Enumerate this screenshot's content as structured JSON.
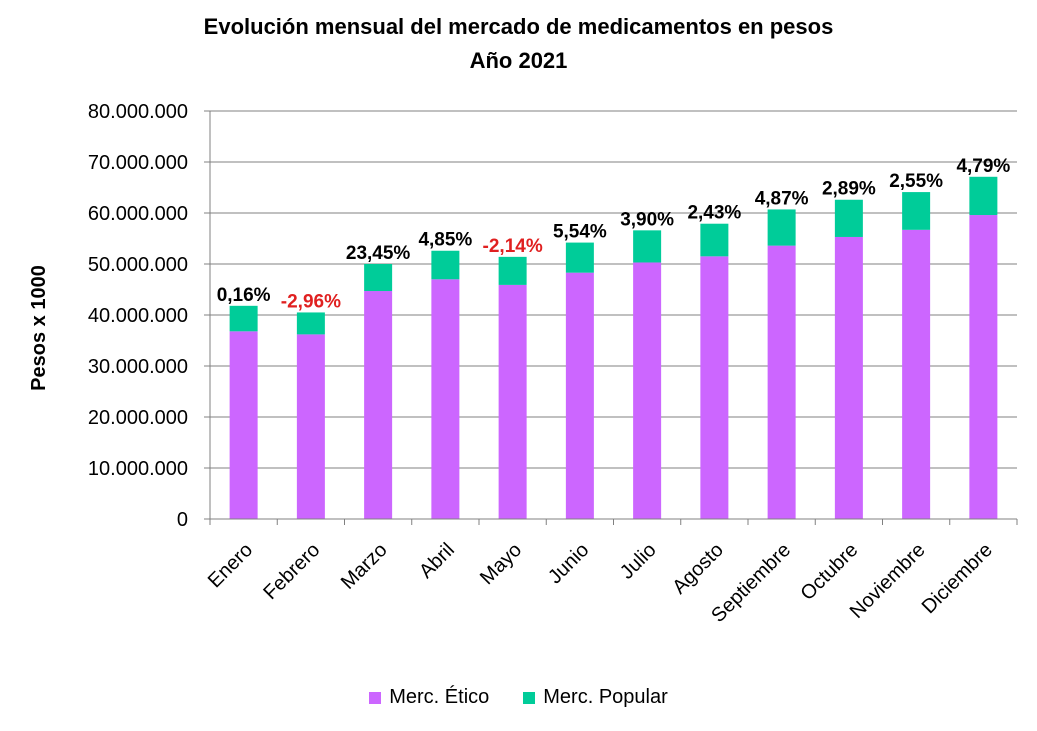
{
  "chart_data": {
    "type": "bar",
    "stacked": true,
    "title": "Evolución mensual del mercado de medicamentos en pesos",
    "subtitle": "Año 2021",
    "ylabel": "Pesos x 1000",
    "xlabel": "",
    "ylim": [
      0,
      80000000
    ],
    "ytick_values": [
      0,
      10000000,
      20000000,
      30000000,
      40000000,
      50000000,
      60000000,
      70000000,
      80000000
    ],
    "ytick_labels": [
      "0",
      "10.000.000",
      "20.000.000",
      "30.000.000",
      "40.000.000",
      "50.000.000",
      "60.000.000",
      "70.000.000",
      "80.000.000"
    ],
    "grid": true,
    "legend_position": "bottom",
    "categories": [
      "Enero",
      "Febrero",
      "Marzo",
      "Abril",
      "Mayo",
      "Junio",
      "Julio",
      "Agosto",
      "Septiembre",
      "Octubre",
      "Noviembre",
      "Diciembre"
    ],
    "series": [
      {
        "name": "Merc. Ético",
        "color": "#cc66ff",
        "values": [
          36800000,
          36200000,
          44700000,
          47000000,
          45900000,
          48300000,
          50300000,
          51500000,
          53600000,
          55300000,
          56700000,
          59600000
        ]
      },
      {
        "name": "Merc. Popular",
        "color": "#00cc99",
        "values": [
          5000000,
          4300000,
          5300000,
          5600000,
          5500000,
          5900000,
          6300000,
          6400000,
          7100000,
          7300000,
          7400000,
          7500000
        ]
      }
    ],
    "annotations": [
      "0,16%",
      "-2,96%",
      "23,45%",
      "4,85%",
      "-2,14%",
      "5,54%",
      "3,90%",
      "2,43%",
      "4,87%",
      "2,89%",
      "2,55%",
      "4,79%"
    ],
    "annotation_colors": [
      "#000000",
      "#e02020",
      "#000000",
      "#000000",
      "#e02020",
      "#000000",
      "#000000",
      "#000000",
      "#000000",
      "#000000",
      "#000000",
      "#000000"
    ]
  }
}
